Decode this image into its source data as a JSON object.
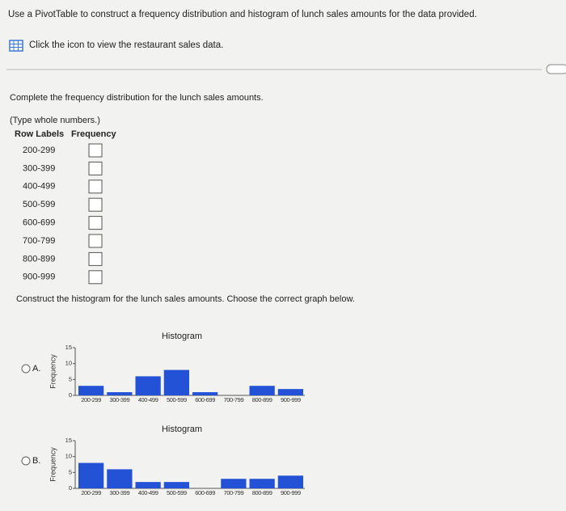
{
  "header": {
    "instruction": "Use a PivotTable to construct a frequency distribution and histogram of lunch sales amounts for the data provided.",
    "link": "Click the icon to view the restaurant sales data."
  },
  "question": {
    "prompt": "Complete the frequency distribution for the lunch sales amounts.",
    "note": "(Type whole numbers.)",
    "table": {
      "headers": [
        "Row Labels",
        "Frequency"
      ],
      "rows": [
        "200-299",
        "300-399",
        "400-499",
        "500-599",
        "600-699",
        "700-799",
        "800-899",
        "900-999"
      ]
    },
    "histogram_prompt": "Construct the histogram for the lunch sales amounts. Choose the correct graph below."
  },
  "option_labels": [
    "A.",
    "B."
  ],
  "chart_data": [
    {
      "type": "bar",
      "title": "Histogram",
      "ylabel": "Frequency",
      "categories": [
        "200-299",
        "300-399",
        "400-499",
        "500-599",
        "600-699",
        "700-799",
        "800-899",
        "900-999"
      ],
      "values": [
        3,
        1,
        6,
        8,
        1,
        0,
        3,
        2
      ],
      "color": "#2352d6",
      "ylim": [
        0,
        15
      ],
      "yticks": [
        0,
        5,
        10,
        15
      ]
    },
    {
      "type": "bar",
      "title": "Histogram",
      "ylabel": "Frequency",
      "categories": [
        "200-299",
        "300-399",
        "400-499",
        "500-599",
        "600-699",
        "700-799",
        "800-899",
        "900-999"
      ],
      "values": [
        8,
        6,
        2,
        2,
        0,
        3,
        3,
        4
      ],
      "color": "#2352d6",
      "ylim": [
        0,
        15
      ],
      "yticks": [
        0,
        5,
        10,
        15
      ]
    }
  ]
}
